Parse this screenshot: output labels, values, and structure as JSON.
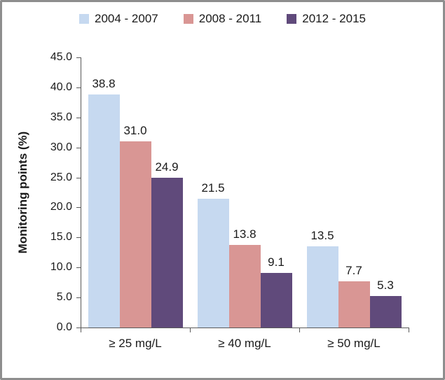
{
  "chart_data": {
    "type": "bar",
    "title": "",
    "xlabel": "",
    "ylabel": "Monitoring points (%)",
    "categories": [
      "≥ 25 mg/L",
      "≥ 40 mg/L",
      "≥ 50 mg/L"
    ],
    "series": [
      {
        "name": "2004 - 2007",
        "color": "#c6d9f0",
        "values": [
          38.8,
          21.5,
          13.5
        ]
      },
      {
        "name": "2008 - 2011",
        "color": "#d99694",
        "values": [
          31.0,
          13.8,
          7.7
        ]
      },
      {
        "name": "2012 - 2015",
        "color": "#604a7b",
        "values": [
          24.9,
          9.1,
          5.3
        ]
      }
    ],
    "ylim": [
      0,
      45
    ],
    "ytick_step": 5,
    "ytick_labels": [
      "0.0",
      "5.0",
      "10.0",
      "15.0",
      "20.0",
      "25.0",
      "30.0",
      "35.0",
      "40.0",
      "45.0"
    ],
    "grid": false,
    "legend_position": "top",
    "value_labels_shown": true,
    "value_labels": [
      [
        "38.8",
        "21.5",
        "13.5"
      ],
      [
        "31.0",
        "13.8",
        "7.7"
      ],
      [
        "24.9",
        "9.1",
        "5.3"
      ]
    ]
  },
  "colors": {
    "axis": "#595959",
    "text": "#1a1a1a",
    "frame": "#8e8e8e",
    "background": "#ffffff"
  }
}
